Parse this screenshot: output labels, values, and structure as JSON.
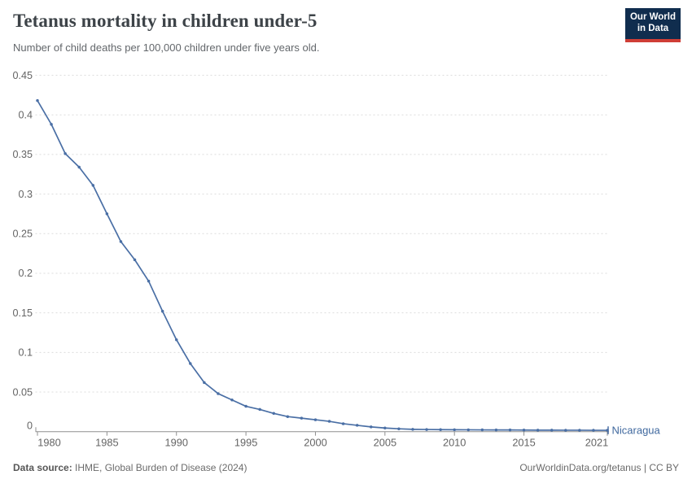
{
  "header": {
    "title": "Tetanus mortality in children under-5",
    "subtitle": "Number of child deaths per 100,000 children under five years old."
  },
  "logo": {
    "line1": "Our World",
    "line2": "in Data",
    "bg": "#102d4e",
    "accent": "#cf3e36"
  },
  "footer": {
    "source_label": "Data source:",
    "source_value": " IHME, Global Burden of Disease (2024)",
    "rights": "OurWorldinData.org/tetanus | CC BY"
  },
  "colors": {
    "line": "#4a6fa5",
    "series_label": "#3f689e",
    "grid": "#dcdcdc",
    "axis": "#8f8f8f",
    "tick": "#8f8f8f",
    "axis_text": "#646464"
  },
  "chart_data": {
    "type": "line",
    "title": "Tetanus mortality in children under-5",
    "subtitle": "Number of child deaths per 100,000 children under five years old.",
    "x": [
      1980,
      1981,
      1982,
      1983,
      1984,
      1985,
      1986,
      1987,
      1988,
      1989,
      1990,
      1991,
      1992,
      1993,
      1994,
      1995,
      1996,
      1997,
      1998,
      1999,
      2000,
      2001,
      2002,
      2003,
      2004,
      2005,
      2006,
      2007,
      2008,
      2009,
      2010,
      2011,
      2012,
      2013,
      2014,
      2015,
      2016,
      2017,
      2018,
      2019,
      2020,
      2021
    ],
    "series": [
      {
        "name": "Nicaragua",
        "color": "#4a6fa5",
        "values": [
          0.418,
          0.388,
          0.351,
          0.334,
          0.311,
          0.275,
          0.24,
          0.217,
          0.19,
          0.152,
          0.116,
          0.086,
          0.062,
          0.048,
          0.04,
          0.032,
          0.028,
          0.023,
          0.019,
          0.017,
          0.015,
          0.013,
          0.01,
          0.008,
          0.006,
          0.0046,
          0.0036,
          0.0029,
          0.0027,
          0.0025,
          0.0024,
          0.0023,
          0.0022,
          0.0021,
          0.0021,
          0.002,
          0.0019,
          0.0019,
          0.0018,
          0.0018,
          0.0017,
          0.0017
        ]
      }
    ],
    "xlabel": "",
    "ylabel": "",
    "ylim": [
      0,
      0.45
    ],
    "yticks": [
      0,
      0.05,
      0.1,
      0.15,
      0.2,
      0.25,
      0.3,
      0.35,
      0.4,
      0.45
    ],
    "ytick_labels": [
      "0",
      "0.05",
      "0.1",
      "0.15",
      "0.2",
      "0.25",
      "0.3",
      "0.35",
      "0.4",
      "0.45"
    ],
    "xticks": [
      1980,
      1985,
      1990,
      1995,
      2000,
      2005,
      2010,
      2015,
      2021
    ],
    "grid": "horizontal-dashed",
    "legend": "line-end-label"
  }
}
